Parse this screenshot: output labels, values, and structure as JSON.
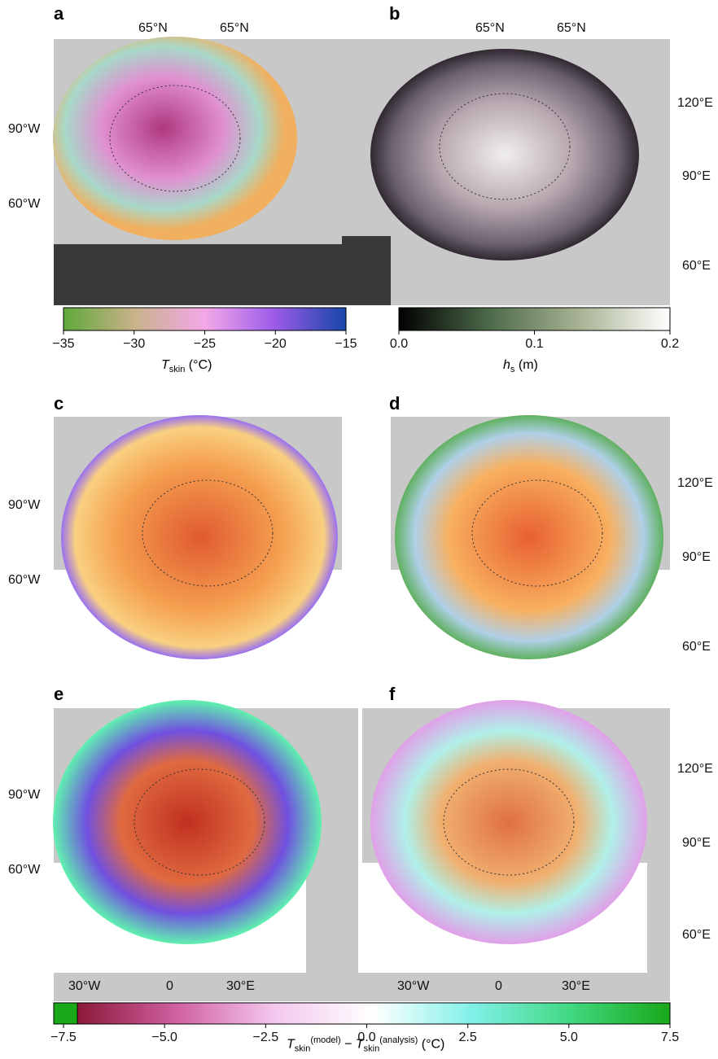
{
  "panels": [
    {
      "label": "a",
      "top_labels": [
        "65°N",
        "65°N"
      ],
      "left_labels": [
        "90°W",
        "60°W"
      ]
    },
    {
      "label": "b",
      "top_labels": [
        "65°N",
        "65°N"
      ],
      "right_labels": [
        "120°E",
        "90°E",
        "60°E"
      ]
    },
    {
      "label": "c",
      "left_labels": [
        "90°W",
        "60°W"
      ]
    },
    {
      "label": "d",
      "right_labels": [
        "120°E",
        "90°E",
        "60°E"
      ]
    },
    {
      "label": "e",
      "left_labels": [
        "90°W",
        "60°W"
      ],
      "bottom_labels": [
        "30°W",
        "0",
        "30°E"
      ]
    },
    {
      "label": "f",
      "right_labels": [
        "120°E",
        "90°E",
        "60°E"
      ],
      "bottom_labels": [
        "30°W",
        "0",
        "30°E"
      ]
    }
  ],
  "colorbars": [
    {
      "symbol": "T",
      "subscript": "skin",
      "unit": "(°C)",
      "lim": [
        -35,
        -15
      ],
      "ticks": [
        {
          "value": -35,
          "label": "−35"
        },
        {
          "value": -30,
          "label": "−30"
        },
        {
          "value": -25,
          "label": "−25"
        },
        {
          "value": -20,
          "label": "−20"
        },
        {
          "value": -15,
          "label": "−15"
        }
      ],
      "colors": [
        "#5fa83a",
        "#c9b28a",
        "#f3a8e8",
        "#9a5ae8",
        "#1746a8"
      ]
    },
    {
      "symbol": "h",
      "subscript": "s",
      "unit": "(m)",
      "lim": [
        0,
        0.2
      ],
      "ticks": [
        {
          "value": 0,
          "label": "0.0"
        },
        0.1,
        0.2
      ],
      "colors": [
        "#000000",
        "#4d6a4a",
        "#a8b394",
        "#ffffff"
      ]
    },
    {
      "symbol_1": "T",
      "superscript_1": "(model)",
      "subscript_1": "skin",
      "operator": "−",
      "symbol_2": "T",
      "superscript_2": "(analysis)",
      "subscript_2": "skin",
      "unit": "(°C)",
      "lim": [
        -7.5,
        7.5
      ],
      "ticks": [
        {
          "value": -7.5,
          "label": "−7.5"
        },
        {
          "value": -5,
          "label": "−5.0"
        },
        {
          "value": -2.5,
          "label": "−2.5"
        },
        {
          "value": 0,
          "label": "0.0"
        },
        {
          "value": 2.5,
          "label": "2.5"
        },
        {
          "value": 5,
          "label": "5.0"
        },
        {
          "value": 7.5,
          "label": "7.5"
        }
      ],
      "colors": [
        "#8b1a3a",
        "#d060a0",
        "#f4c8ee",
        "#ffffff",
        "#80f0e8",
        "#40d880",
        "#18a818"
      ]
    }
  ]
}
